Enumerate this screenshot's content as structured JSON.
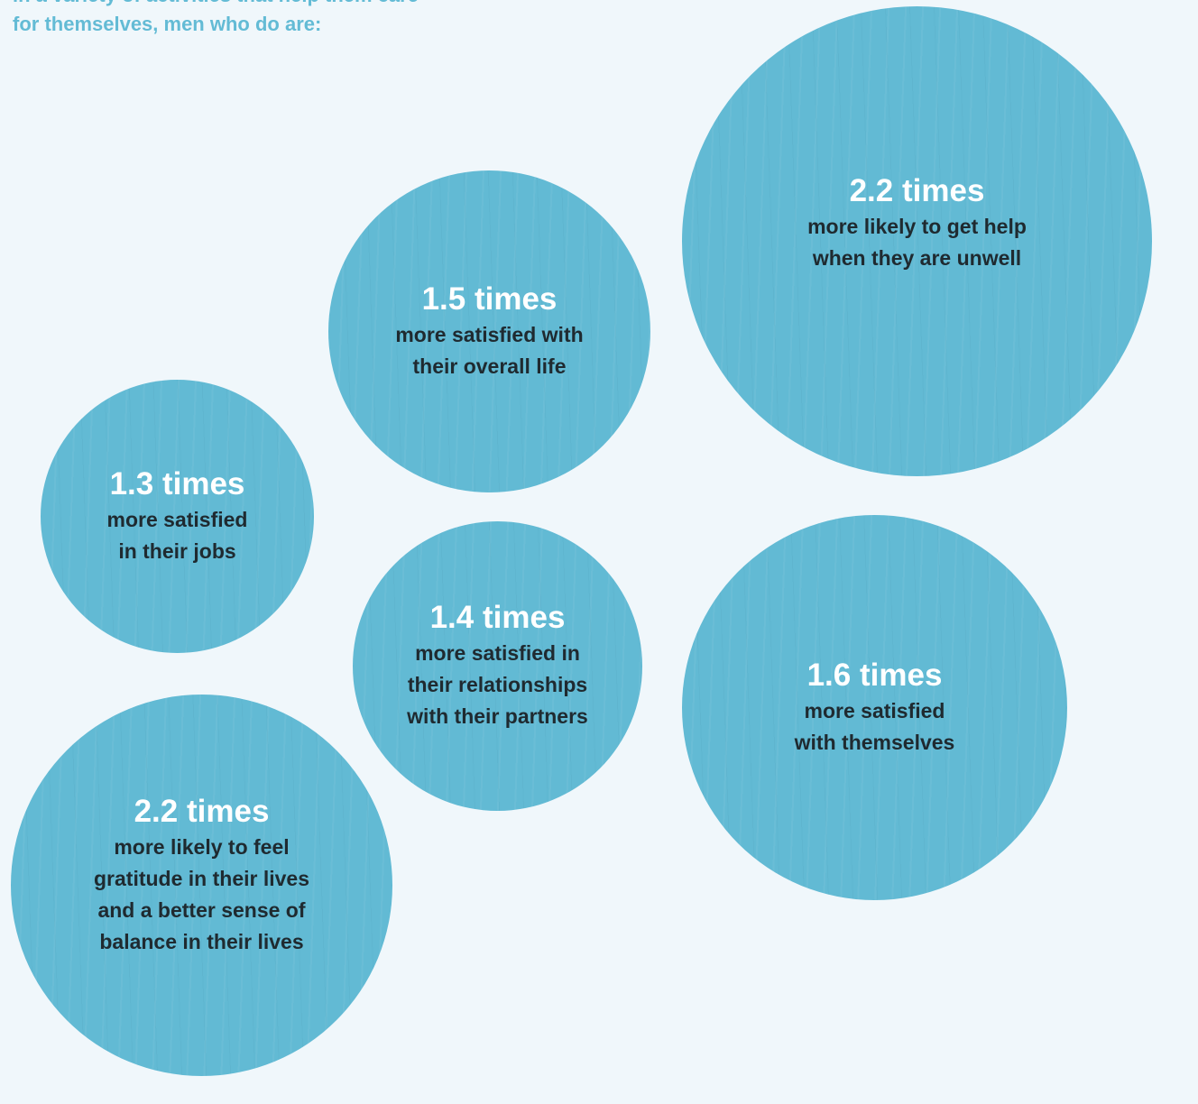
{
  "intro": {
    "lines": [
      "in a variety of activities that help them care",
      "for themselves, men who do are:"
    ]
  },
  "chart_data": {
    "type": "bubble",
    "unit": "times",
    "items": [
      {
        "value": 2.2,
        "value_label": "2.2 times",
        "lines": [
          "more likely to get help",
          "when they are unwell"
        ]
      },
      {
        "value": 1.5,
        "value_label": "1.5 times",
        "lines": [
          "more satisfied with",
          "their overall life"
        ]
      },
      {
        "value": 1.3,
        "value_label": "1.3 times",
        "lines": [
          "more satisfied",
          "in their jobs"
        ]
      },
      {
        "value": 1.4,
        "value_label": "1.4 times",
        "lines": [
          "more satisfied in",
          "their relationships",
          "with their partners"
        ]
      },
      {
        "value": 1.6,
        "value_label": "1.6 times",
        "lines": [
          "more satisfied",
          "with themselves"
        ]
      },
      {
        "value": 2.2,
        "value_label": "2.2 times",
        "lines": [
          "more likely to feel",
          "gratitude in their lives",
          "and a better sense of",
          "balance in their lives"
        ]
      }
    ],
    "colors": {
      "bubble": "#62bad4",
      "value_text": "#ffffff",
      "description_text": "#1f2a30",
      "intro_text": "#63bbd5",
      "background": "#f0f7fb"
    }
  }
}
